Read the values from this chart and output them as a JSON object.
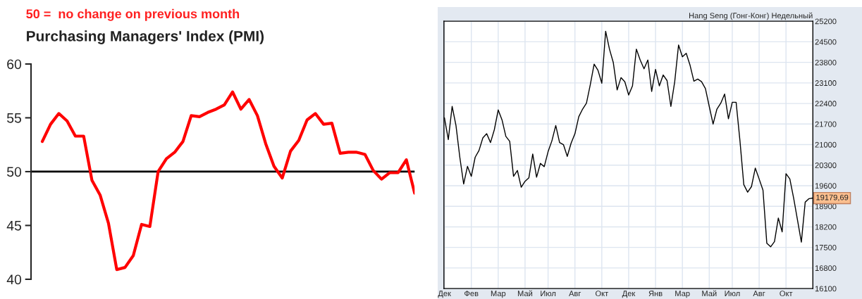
{
  "chart_data": [
    {
      "type": "line",
      "title": "Purchasing Managers' Index (PMI)",
      "subtitle": "50 =  no change on previous month",
      "categories": [
        null,
        null,
        null,
        null,
        null,
        null,
        null,
        null,
        null,
        null,
        null,
        null,
        null,
        null,
        null,
        null,
        null,
        null,
        null,
        null,
        null,
        null,
        null,
        null,
        null,
        null,
        null,
        null,
        null,
        null,
        null,
        null,
        null,
        null,
        null,
        null,
        null,
        null,
        null,
        null,
        null,
        null,
        null,
        null,
        null,
        null
      ],
      "series": [
        {
          "color": "#ff0000",
          "values": [
            52.8,
            54.4,
            55.4,
            54.7,
            53.3,
            53.3,
            49.2,
            47.8,
            45.2,
            40.9,
            41.1,
            42.2,
            45.1,
            44.9,
            50.0,
            51.2,
            51.8,
            52.8,
            55.2,
            55.1,
            55.5,
            55.8,
            56.2,
            57.4,
            55.8,
            56.7,
            55.2,
            52.6,
            50.5,
            49.4,
            51.9,
            52.9,
            54.8,
            55.4,
            54.4,
            54.5,
            51.7,
            51.8,
            51.8,
            51.6,
            50.1,
            49.3,
            49.9,
            49.9,
            51.1,
            48.0
          ]
        }
      ],
      "ylim": [
        40,
        60
      ],
      "yticks": [
        40,
        45,
        50,
        55,
        60
      ],
      "ref_lines": [
        {
          "axis": "y",
          "value": 50,
          "color": "#000000"
        }
      ],
      "tick_labels": "y",
      "grid": false,
      "legend": false,
      "marker": "none",
      "line_style": "solid"
    },
    {
      "type": "line",
      "title": "Hang Seng (Гонг-Конг) Недельный",
      "categories": [
        "Дек",
        null,
        null,
        null,
        null,
        null,
        null,
        "Фев",
        null,
        null,
        null,
        null,
        null,
        null,
        "Мар",
        null,
        null,
        null,
        null,
        null,
        null,
        "Май",
        null,
        null,
        null,
        null,
        null,
        "Июл",
        null,
        null,
        null,
        null,
        null,
        null,
        "Авг",
        null,
        null,
        null,
        null,
        null,
        null,
        "Окт",
        null,
        null,
        null,
        null,
        null,
        null,
        "Дек",
        null,
        null,
        null,
        null,
        null,
        null,
        "Янв",
        null,
        null,
        null,
        null,
        null,
        null,
        "Мар",
        null,
        null,
        null,
        null,
        null,
        null,
        "Май",
        null,
        null,
        null,
        null,
        null,
        "Июл",
        null,
        null,
        null,
        null,
        null,
        null,
        "Авг",
        null,
        null,
        null,
        null,
        null,
        null,
        "Окт",
        null,
        null,
        null,
        null,
        null,
        null,
        null
      ],
      "series": [
        {
          "color": "#000000",
          "values": [
            21910,
            21170,
            22300,
            21650,
            20570,
            19660,
            20260,
            19920,
            20570,
            20800,
            21230,
            21370,
            21070,
            21510,
            22180,
            21840,
            21280,
            21110,
            19920,
            20120,
            19550,
            19750,
            19870,
            20680,
            19890,
            20360,
            20250,
            20760,
            21130,
            21650,
            21070,
            21000,
            20600,
            21050,
            21370,
            21950,
            22210,
            22410,
            23040,
            23740,
            23530,
            23090,
            24860,
            24250,
            23790,
            22860,
            23280,
            23140,
            22690,
            23000,
            24250,
            23880,
            23580,
            23880,
            22810,
            23560,
            23000,
            23370,
            23180,
            22300,
            23140,
            24390,
            23990,
            24110,
            23700,
            23160,
            23230,
            23140,
            22910,
            22300,
            21700,
            22210,
            22410,
            22720,
            21880,
            22440,
            22440,
            21130,
            19640,
            19380,
            19570,
            20200,
            19830,
            19450,
            17640,
            17520,
            17700,
            18500,
            18030,
            20010,
            19830,
            19170,
            18430,
            17680,
            19040,
            19160,
            19180
          ]
        }
      ],
      "ylim": [
        16100,
        25200
      ],
      "yticks": [
        16100,
        16800,
        17500,
        18200,
        18900,
        19600,
        20300,
        21000,
        21700,
        22400,
        23100,
        23800,
        24500,
        25200
      ],
      "annotations": [
        "19179,69"
      ],
      "grid": true,
      "legend": false,
      "marker": "none",
      "line_style": "solid"
    }
  ]
}
